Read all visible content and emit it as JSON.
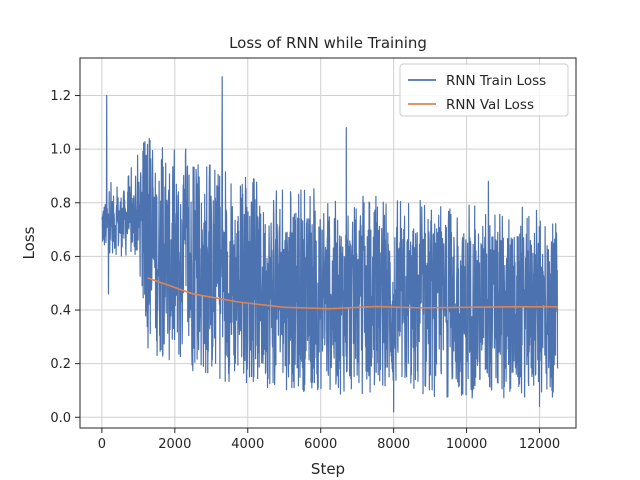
{
  "chart_data": {
    "type": "line",
    "title": "Loss of RNN while Training",
    "xlabel": "Step",
    "ylabel": "Loss",
    "xlim": [
      -600,
      13000
    ],
    "ylim": [
      -0.04,
      1.34
    ],
    "xticks": [
      0,
      2000,
      4000,
      6000,
      8000,
      10000,
      12000
    ],
    "yticks": [
      0.0,
      0.2,
      0.4,
      0.6,
      0.8,
      1.0,
      1.2
    ],
    "grid": true,
    "legend_position": "top-right",
    "series": [
      {
        "name": "RNN Train Loss",
        "color": "#4c72b0",
        "x_range": [
          0,
          12500
        ],
        "envelope": {
          "x": [
            0,
            1000,
            1200,
            2000,
            3000,
            4000,
            5000,
            6000,
            7000,
            8000,
            9000,
            10000,
            11000,
            12000,
            12500
          ],
          "low": [
            0.62,
            0.58,
            0.25,
            0.18,
            0.14,
            0.12,
            0.1,
            0.09,
            0.08,
            0.08,
            0.07,
            0.07,
            0.07,
            0.07,
            0.06
          ],
          "high": [
            0.8,
            0.88,
            0.95,
            0.9,
            0.85,
            0.8,
            0.77,
            0.75,
            0.73,
            0.72,
            0.71,
            0.7,
            0.69,
            0.68,
            0.68
          ]
        },
        "spikes": [
          {
            "x": 130,
            "y": 1.2
          },
          {
            "x": 180,
            "y": 0.46
          },
          {
            "x": 1300,
            "y": 1.04
          },
          {
            "x": 2300,
            "y": 1.0
          },
          {
            "x": 3300,
            "y": 1.27
          },
          {
            "x": 6700,
            "y": 1.08
          },
          {
            "x": 8000,
            "y": 0.02
          },
          {
            "x": 10600,
            "y": 0.88
          },
          {
            "x": 12000,
            "y": 0.04
          }
        ]
      },
      {
        "name": "RNN Val Loss",
        "color": "#dd8452",
        "x": [
          1250,
          2500,
          3750,
          5000,
          6250,
          7500,
          8750,
          10000,
          11250,
          12500
        ],
        "y": [
          0.52,
          0.46,
          0.43,
          0.41,
          0.405,
          0.413,
          0.408,
          0.41,
          0.412,
          0.412
        ]
      }
    ]
  }
}
